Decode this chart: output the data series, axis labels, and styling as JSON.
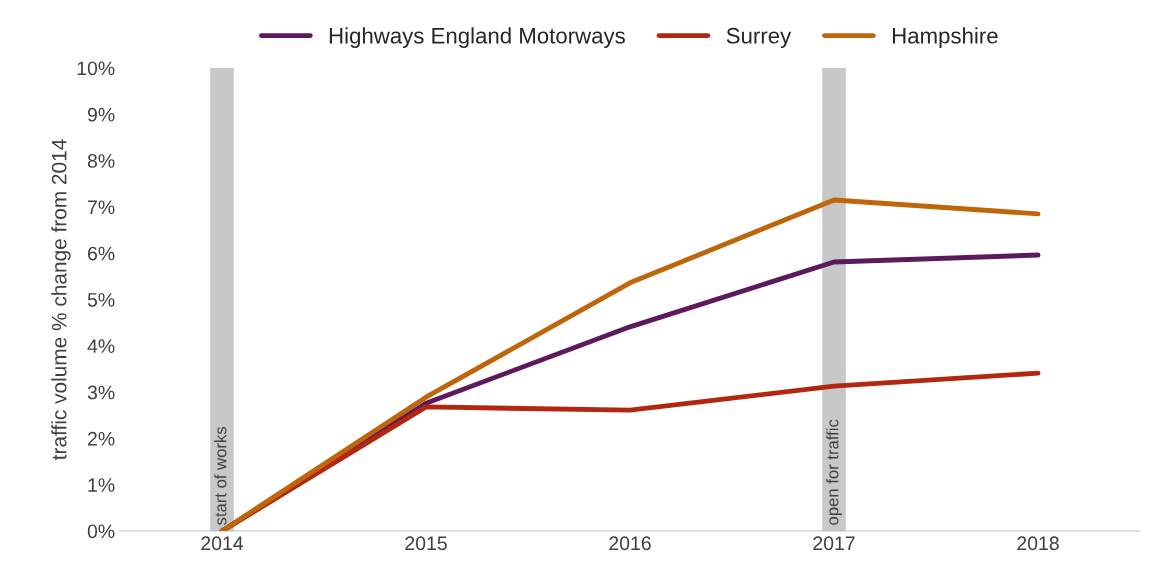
{
  "chart_data": {
    "type": "line",
    "ylabel": "traffic volume % change from 2014",
    "categories": [
      "2014",
      "2015",
      "2016",
      "2017",
      "2018"
    ],
    "series": [
      {
        "name": "Highways England Motorways",
        "color": "#5c1a5c",
        "values": [
          0,
          2.76,
          4.41,
          5.81,
          5.96
        ]
      },
      {
        "name": "Surrey",
        "color": "#b3260f",
        "values": [
          0,
          2.68,
          2.61,
          3.13,
          3.41
        ]
      },
      {
        "name": "Hampshire",
        "color": "#bf650a",
        "values": [
          0,
          2.89,
          5.36,
          7.15,
          6.85
        ]
      }
    ],
    "ylim": [
      0,
      10
    ],
    "yticks": [
      {
        "value": 0,
        "label": "0%"
      },
      {
        "value": 1,
        "label": "1%"
      },
      {
        "value": 2,
        "label": "2%"
      },
      {
        "value": 3,
        "label": "3%"
      },
      {
        "value": 4,
        "label": "4%"
      },
      {
        "value": 5,
        "label": "5%"
      },
      {
        "value": 6,
        "label": "6%"
      },
      {
        "value": 7,
        "label": "7%"
      },
      {
        "value": 8,
        "label": "8%"
      },
      {
        "value": 9,
        "label": "9%"
      },
      {
        "value": 10,
        "label": "10%"
      }
    ],
    "ref_lines": [
      {
        "axis": "x",
        "value": "2014",
        "label": "start of works",
        "color": "#c8c8c8"
      },
      {
        "axis": "x",
        "value": "2017",
        "label": "open for traffic",
        "color": "#c8c8c8"
      }
    ],
    "grid": false,
    "legend": "top",
    "marker": "none",
    "line_style": "solid"
  }
}
